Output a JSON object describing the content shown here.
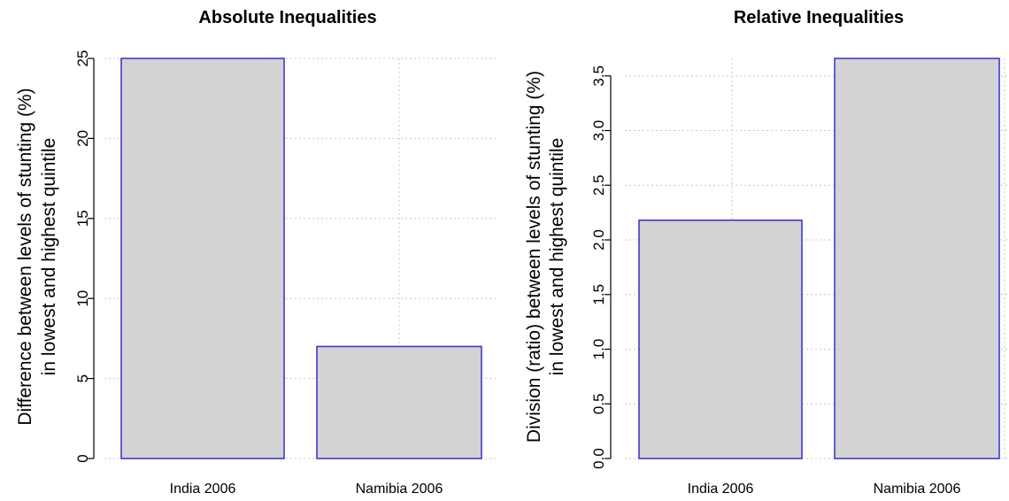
{
  "chart_data": [
    {
      "type": "bar",
      "title": "Absolute Inequalities",
      "ylabel_lines": [
        "Difference between levels of stunting (%)",
        "in lowest and highest quintile"
      ],
      "categories": [
        "India 2006",
        "Namibia 2006"
      ],
      "values": [
        25,
        7
      ],
      "ylim": [
        0,
        25
      ],
      "yticks": [
        0,
        5,
        10,
        15,
        20,
        25
      ],
      "ytick_labels": [
        "0",
        "5",
        "10",
        "15",
        "20",
        "25"
      ],
      "grid": true,
      "bar_fill": "#d3d3d3",
      "bar_edge": "#3c3cc8"
    },
    {
      "type": "bar",
      "title": "Relative Inequalities",
      "ylabel_lines": [
        "Division (ratio) between levels of stunting (%)",
        "in lowest and highest quintile"
      ],
      "categories": [
        "India 2006",
        "Namibia 2006"
      ],
      "values": [
        2.18,
        3.66
      ],
      "ylim": [
        0,
        3.66
      ],
      "yticks": [
        0,
        0.5,
        1.0,
        1.5,
        2.0,
        2.5,
        3.0,
        3.5
      ],
      "ytick_labels": [
        "0.0",
        "0.5",
        "1.0",
        "1.5",
        "2.0",
        "2.5",
        "3.0",
        "3.5"
      ],
      "grid": true,
      "bar_fill": "#d3d3d3",
      "bar_edge": "#3c3cc8"
    }
  ]
}
